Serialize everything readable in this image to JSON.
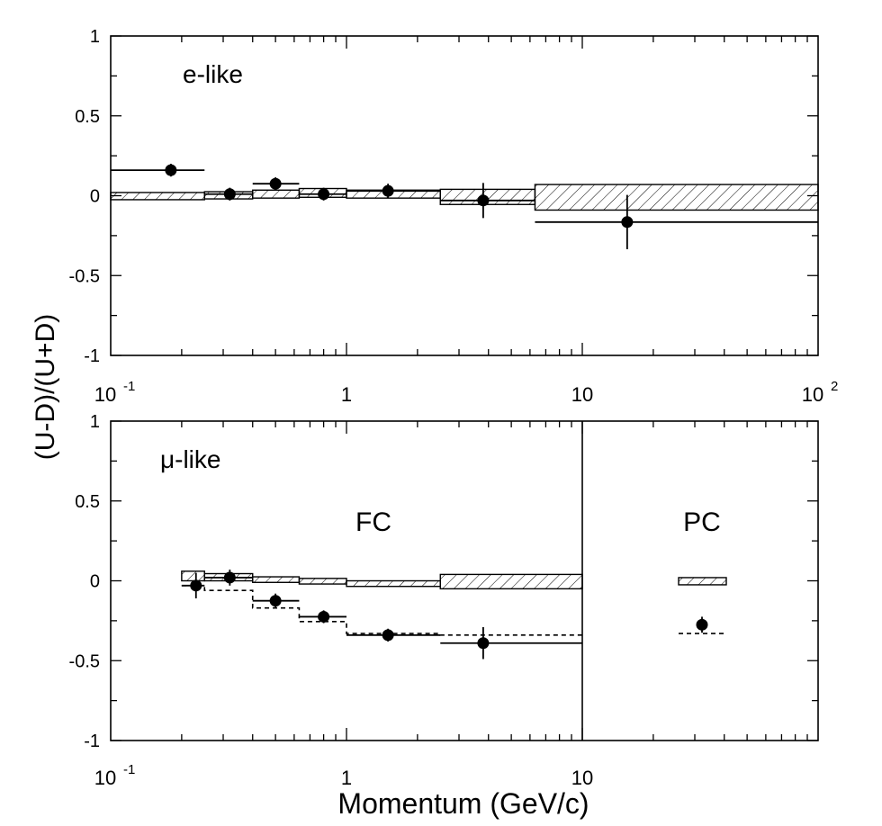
{
  "ylabel": "(U-D)/(U+D)",
  "xlabel": "Momentum (GeV/c)",
  "colors": {
    "ink": "#000000",
    "background": "#ffffff"
  },
  "chart_data": [
    {
      "type": "scatter",
      "panel": "top",
      "annotation": "e-like",
      "x_scale": "log",
      "xlim": [
        0.1,
        100
      ],
      "ylim": [
        -1,
        1
      ],
      "x_ticks": [
        {
          "base": "10",
          "exp": "-1"
        },
        {
          "base": "1",
          "exp": ""
        },
        {
          "base": "10",
          "exp": ""
        },
        {
          "base": "10",
          "exp": "2"
        }
      ],
      "y_ticks": [
        "1",
        "0.5",
        "0",
        "-0.5",
        "-1"
      ],
      "points": [
        {
          "x": 0.18,
          "y": 0.16,
          "xlo": 0.1,
          "xhi": 0.25,
          "err": 0.04
        },
        {
          "x": 0.32,
          "y": 0.01,
          "xlo": 0.25,
          "xhi": 0.4,
          "err": 0.04
        },
        {
          "x": 0.5,
          "y": 0.075,
          "xlo": 0.4,
          "xhi": 0.63,
          "err": 0.04
        },
        {
          "x": 0.8,
          "y": 0.01,
          "xlo": 0.63,
          "xhi": 1.0,
          "err": 0.04
        },
        {
          "x": 1.5,
          "y": 0.03,
          "xlo": 1.0,
          "xhi": 2.5,
          "err": 0.045
        },
        {
          "x": 3.8,
          "y": -0.03,
          "xlo": 2.5,
          "xhi": 6.3,
          "err": 0.11
        },
        {
          "x": 15.5,
          "y": -0.165,
          "xlo": 6.3,
          "xhi": 100,
          "err": 0.17
        }
      ],
      "mc_bands": [
        {
          "xlo": 0.1,
          "xhi": 0.25,
          "ylo": -0.025,
          "yhi": 0.02
        },
        {
          "xlo": 0.25,
          "xhi": 0.4,
          "ylo": -0.02,
          "yhi": 0.025
        },
        {
          "xlo": 0.4,
          "xhi": 0.63,
          "ylo": -0.015,
          "yhi": 0.035
        },
        {
          "xlo": 0.63,
          "xhi": 1.0,
          "ylo": -0.01,
          "yhi": 0.045
        },
        {
          "xlo": 1.0,
          "xhi": 2.5,
          "ylo": -0.015,
          "yhi": 0.035
        },
        {
          "xlo": 2.5,
          "xhi": 6.3,
          "ylo": -0.055,
          "yhi": 0.04
        },
        {
          "xlo": 6.3,
          "xhi": 100,
          "ylo": -0.09,
          "yhi": 0.07
        }
      ]
    },
    {
      "type": "scatter",
      "panel": "bottom",
      "annotation": "μ-like",
      "region_labels": [
        "FC",
        "PC"
      ],
      "x_scale": "log",
      "xlim": [
        0.1,
        100
      ],
      "ylim": [
        -1,
        1
      ],
      "fc_boundary": 10,
      "x_ticks": [
        {
          "base": "10",
          "exp": "-1"
        },
        {
          "base": "1",
          "exp": ""
        },
        {
          "base": "10",
          "exp": ""
        }
      ],
      "y_ticks": [
        "1",
        "0.5",
        "0",
        "-0.5",
        "-1"
      ],
      "points": [
        {
          "x": 0.23,
          "y": -0.03,
          "xlo": 0.2,
          "xhi": 0.25,
          "err": 0.08
        },
        {
          "x": 0.32,
          "y": 0.02,
          "xlo": 0.25,
          "xhi": 0.4,
          "err": 0.05
        },
        {
          "x": 0.5,
          "y": -0.125,
          "xlo": 0.4,
          "xhi": 0.63,
          "err": 0.045
        },
        {
          "x": 0.8,
          "y": -0.225,
          "xlo": 0.63,
          "xhi": 1.0,
          "err": 0.04
        },
        {
          "x": 1.5,
          "y": -0.34,
          "xlo": 1.0,
          "xhi": 2.5,
          "err": 0.04
        },
        {
          "x": 3.8,
          "y": -0.39,
          "xlo": 2.5,
          "xhi": 10,
          "err": 0.1
        }
      ],
      "mc_bands": [
        {
          "xlo": 0.2,
          "xhi": 0.25,
          "ylo": 0.0,
          "yhi": 0.06
        },
        {
          "xlo": 0.25,
          "xhi": 0.4,
          "ylo": 0.0,
          "yhi": 0.045
        },
        {
          "xlo": 0.4,
          "xhi": 0.63,
          "ylo": -0.01,
          "yhi": 0.025
        },
        {
          "xlo": 0.63,
          "xhi": 1.0,
          "ylo": -0.02,
          "yhi": 0.015
        },
        {
          "xlo": 1.0,
          "xhi": 2.5,
          "ylo": -0.035,
          "yhi": 0.0
        },
        {
          "xlo": 2.5,
          "xhi": 10,
          "ylo": -0.05,
          "yhi": 0.04
        }
      ],
      "oscillation_steps": [
        {
          "xlo": 0.2,
          "xhi": 0.25,
          "y": -0.03
        },
        {
          "xlo": 0.25,
          "xhi": 0.4,
          "y": -0.06
        },
        {
          "xlo": 0.4,
          "xhi": 0.63,
          "y": -0.17
        },
        {
          "xlo": 0.63,
          "xhi": 1.0,
          "y": -0.255
        },
        {
          "xlo": 1.0,
          "xhi": 2.5,
          "y": -0.33
        },
        {
          "xlo": 2.5,
          "xhi": 10,
          "y": -0.34
        }
      ],
      "pc": {
        "point": {
          "y": -0.275,
          "err": 0.05
        },
        "band": {
          "ylo": -0.025,
          "yhi": 0.02
        },
        "oscillation_y": -0.33
      }
    }
  ]
}
